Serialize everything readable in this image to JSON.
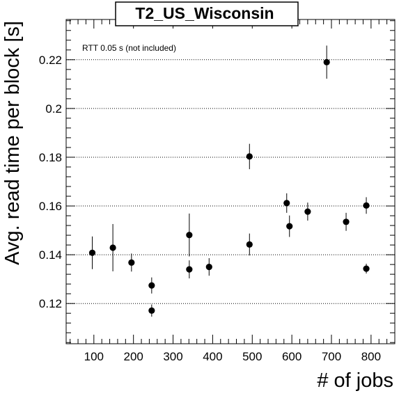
{
  "chart_data": {
    "type": "scatter",
    "title": "T2_US_Wisconsin",
    "xlabel": "# of jobs",
    "ylabel": "Avg. read time per block [s]",
    "annotation": "RTT 0.05 s (not included)",
    "xlim": [
      30,
      860
    ],
    "ylim": [
      0.1035,
      0.2365
    ],
    "x_ticks": [
      100,
      200,
      300,
      400,
      500,
      600,
      700,
      800
    ],
    "y_ticks": [
      0.12,
      0.14,
      0.16,
      0.18,
      0.2,
      0.22
    ],
    "y_tick_labels": [
      "0.12",
      "0.14",
      "0.16",
      "0.18",
      "0.2",
      "0.22"
    ],
    "grid": "horizontal dotted at major y ticks",
    "marker_color": "#000000",
    "points": [
      {
        "x": 96,
        "y": 0.1408,
        "err": 0.0067
      },
      {
        "x": 148,
        "y": 0.1429,
        "err": 0.0097
      },
      {
        "x": 195,
        "y": 0.1368,
        "err": 0.0037
      },
      {
        "x": 246,
        "y": 0.1274,
        "err": 0.0033
      },
      {
        "x": 246,
        "y": 0.1171,
        "err": 0.0025
      },
      {
        "x": 341,
        "y": 0.1481,
        "err": 0.0088
      },
      {
        "x": 341,
        "y": 0.134,
        "err": 0.0037
      },
      {
        "x": 391,
        "y": 0.135,
        "err": 0.0036
      },
      {
        "x": 493,
        "y": 0.1803,
        "err": 0.0052
      },
      {
        "x": 493,
        "y": 0.1442,
        "err": 0.0045
      },
      {
        "x": 587,
        "y": 0.1612,
        "err": 0.004
      },
      {
        "x": 594,
        "y": 0.1517,
        "err": 0.0044
      },
      {
        "x": 640,
        "y": 0.1577,
        "err": 0.0037
      },
      {
        "x": 688,
        "y": 0.219,
        "err": 0.0068
      },
      {
        "x": 737,
        "y": 0.1535,
        "err": 0.0037
      },
      {
        "x": 788,
        "y": 0.1602,
        "err": 0.0034
      },
      {
        "x": 788,
        "y": 0.1343,
        "err": 0.002
      }
    ]
  }
}
